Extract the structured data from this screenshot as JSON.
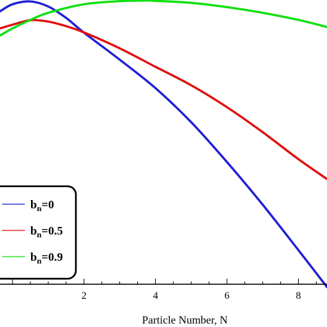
{
  "chart_data": {
    "type": "line",
    "title": "",
    "xlabel": "Particle Number, N",
    "ylabel": "",
    "xlim": [
      -0.35,
      8.8
    ],
    "ylim": [
      0,
      1.0
    ],
    "x_ticks": [
      "2",
      "4",
      "6",
      "8"
    ],
    "grid": false,
    "legend_placement": "bottom-left",
    "series": [
      {
        "name": "b",
        "name_sub": "n",
        "name_value": "=0",
        "color": "#1f1fd6",
        "x": [
          -0.35,
          0,
          0.5,
          1,
          1.5,
          2,
          3,
          4,
          5,
          6,
          7,
          8,
          8.8
        ],
        "y": [
          0.96,
          0.985,
          0.995,
          0.977,
          0.937,
          0.885,
          0.79,
          0.69,
          0.57,
          0.43,
          0.28,
          0.12,
          -0.01
        ]
      },
      {
        "name": "b",
        "name_sub": "n",
        "name_value": "=0.5",
        "color": "#e01010",
        "x": [
          -0.35,
          0,
          0.5,
          1,
          1.5,
          2,
          3,
          4,
          5,
          6,
          7,
          8,
          8.8
        ],
        "y": [
          0.9,
          0.913,
          0.929,
          0.924,
          0.908,
          0.886,
          0.83,
          0.765,
          0.7,
          0.623,
          0.535,
          0.44,
          0.37
        ]
      },
      {
        "name": "b",
        "name_sub": "n",
        "name_value": "=0.9",
        "color": "#10e010",
        "x": [
          -0.35,
          0,
          0.5,
          1,
          2,
          3,
          3.7,
          4,
          5,
          6,
          7,
          8,
          8.8
        ],
        "y": [
          0.875,
          0.9,
          0.93,
          0.955,
          0.985,
          0.996,
          0.998,
          0.997,
          0.99,
          0.975,
          0.955,
          0.93,
          0.905
        ]
      }
    ]
  }
}
